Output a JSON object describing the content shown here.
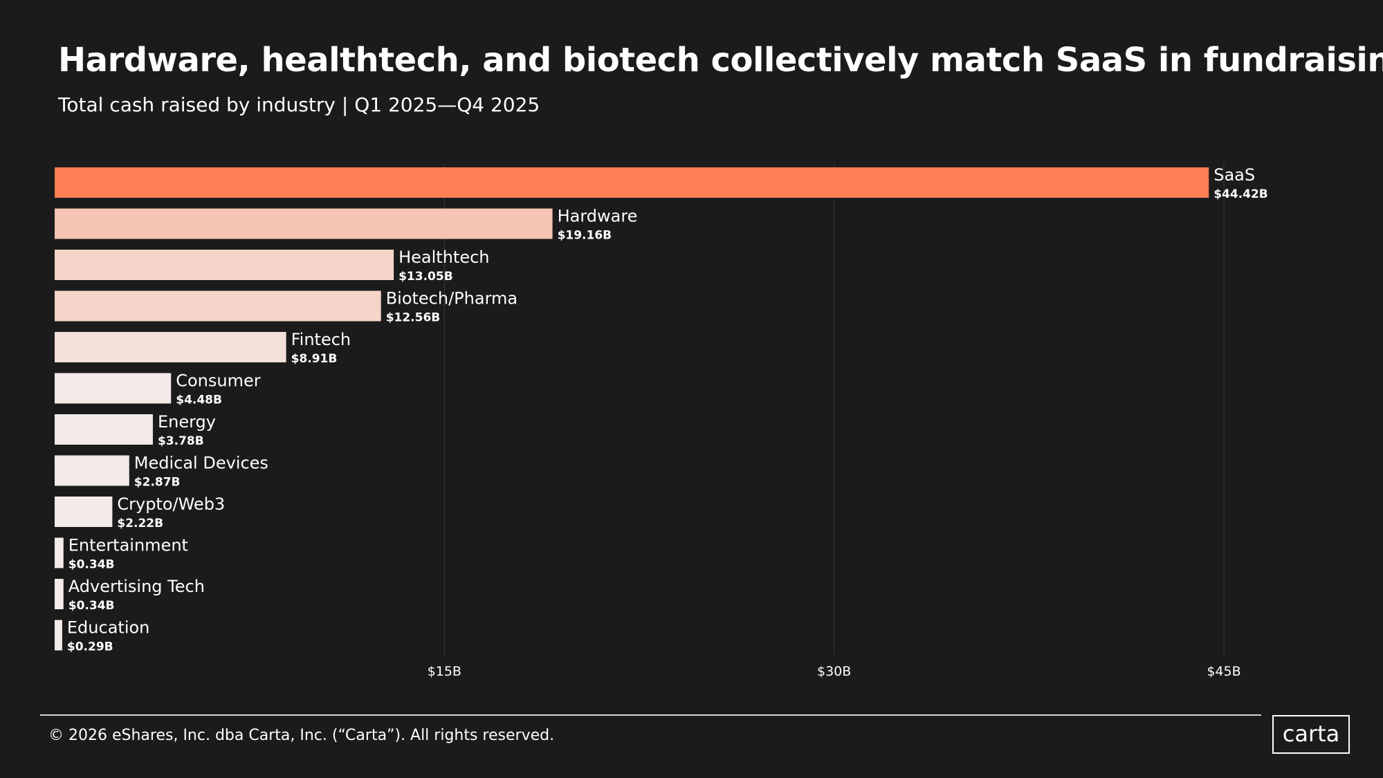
{
  "colors": {
    "background": "#1b1b1b",
    "text": "#ffffff",
    "grid": "#3a3a3a",
    "footer_rule": "#d9d9d9"
  },
  "header": {
    "title": "Hardware, healthtech, and biotech collectively match SaaS in fundraising",
    "subtitle": "Total cash raised by industry | Q1 2025—Q4 2025"
  },
  "footer": {
    "copyright": "© 2026 eShares, Inc. dba Carta, Inc. (“Carta”). All rights reserved.",
    "logo_text": "carta"
  },
  "chart_data": {
    "type": "bar",
    "orientation": "horizontal",
    "title": "Hardware, healthtech, and biotech collectively match SaaS in fundraising",
    "subtitle": "Total cash raised by industry | Q1 2025—Q4 2025",
    "xlabel": "",
    "ylabel": "",
    "unit": "$B",
    "xlim": [
      0,
      45
    ],
    "ticks": [
      {
        "value": 15,
        "label": "$15B"
      },
      {
        "value": 30,
        "label": "$30B"
      },
      {
        "value": 45,
        "label": "$45B"
      }
    ],
    "grid": true,
    "legend": "none",
    "categories": [
      "SaaS",
      "Hardware",
      "Healthtech",
      "Biotech/Pharma",
      "Fintech",
      "Consumer",
      "Energy",
      "Medical Devices",
      "Crypto/Web3",
      "Entertainment",
      "Advertising Tech",
      "Education"
    ],
    "values": [
      44.42,
      19.16,
      13.05,
      12.56,
      8.91,
      4.48,
      3.78,
      2.87,
      2.22,
      0.34,
      0.34,
      0.29
    ],
    "value_labels": [
      "$44.42B",
      "$19.16B",
      "$13.05B",
      "$12.56B",
      "$8.91B",
      "$4.48B",
      "$3.78B",
      "$2.87B",
      "$2.22B",
      "$0.34B",
      "$0.34B",
      "$0.29B"
    ],
    "bar_colors": [
      "#ff7f54",
      "#f6c4b3",
      "#f5d5ca",
      "#f5d5ca",
      "#f3e0d9",
      "#f3ebe7",
      "#f3ebe7",
      "#f3ebe7",
      "#f3ebe7",
      "#f3ebe7",
      "#f3ebe7",
      "#f3ebe7"
    ]
  }
}
